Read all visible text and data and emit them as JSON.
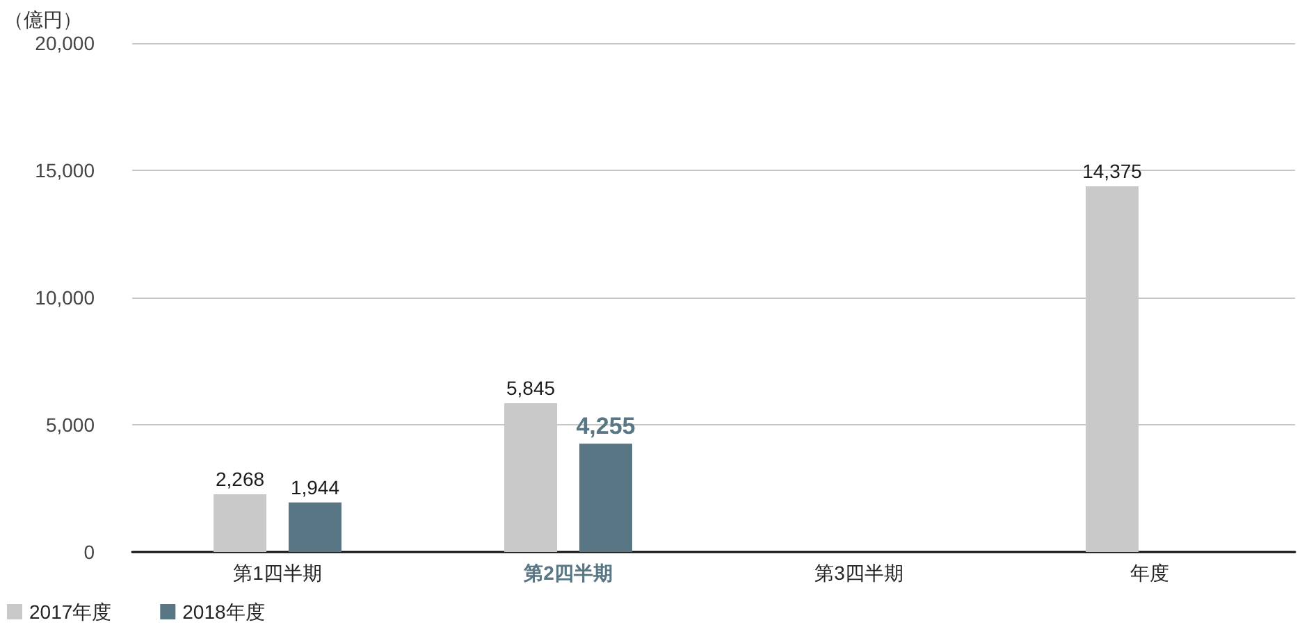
{
  "chart_data": {
    "type": "bar",
    "ylabel": "（億円）",
    "categories": [
      "第1四半期",
      "第2四半期",
      "第3四半期",
      "年度"
    ],
    "series": [
      {
        "name": "2017年度",
        "color": "#c9c9c9",
        "values": [
          2268,
          5845,
          null,
          14375
        ],
        "value_labels": [
          "2,268",
          "5,845",
          null,
          "14,375"
        ]
      },
      {
        "name": "2018年度",
        "color": "#587684",
        "values": [
          1944,
          4255,
          null,
          null
        ],
        "value_labels": [
          "1,944",
          "4,255",
          null,
          null
        ]
      }
    ],
    "ylim": [
      0,
      20000
    ],
    "yticks": [
      0,
      {
        "value": 5000,
        "label": "5,000"
      },
      {
        "value": 10000,
        "label": "10,000"
      },
      {
        "value": 15000,
        "label": "15,000"
      },
      {
        "value": 20000,
        "label": "20,000"
      }
    ],
    "grid": "y",
    "legend": "bottom left"
  }
}
